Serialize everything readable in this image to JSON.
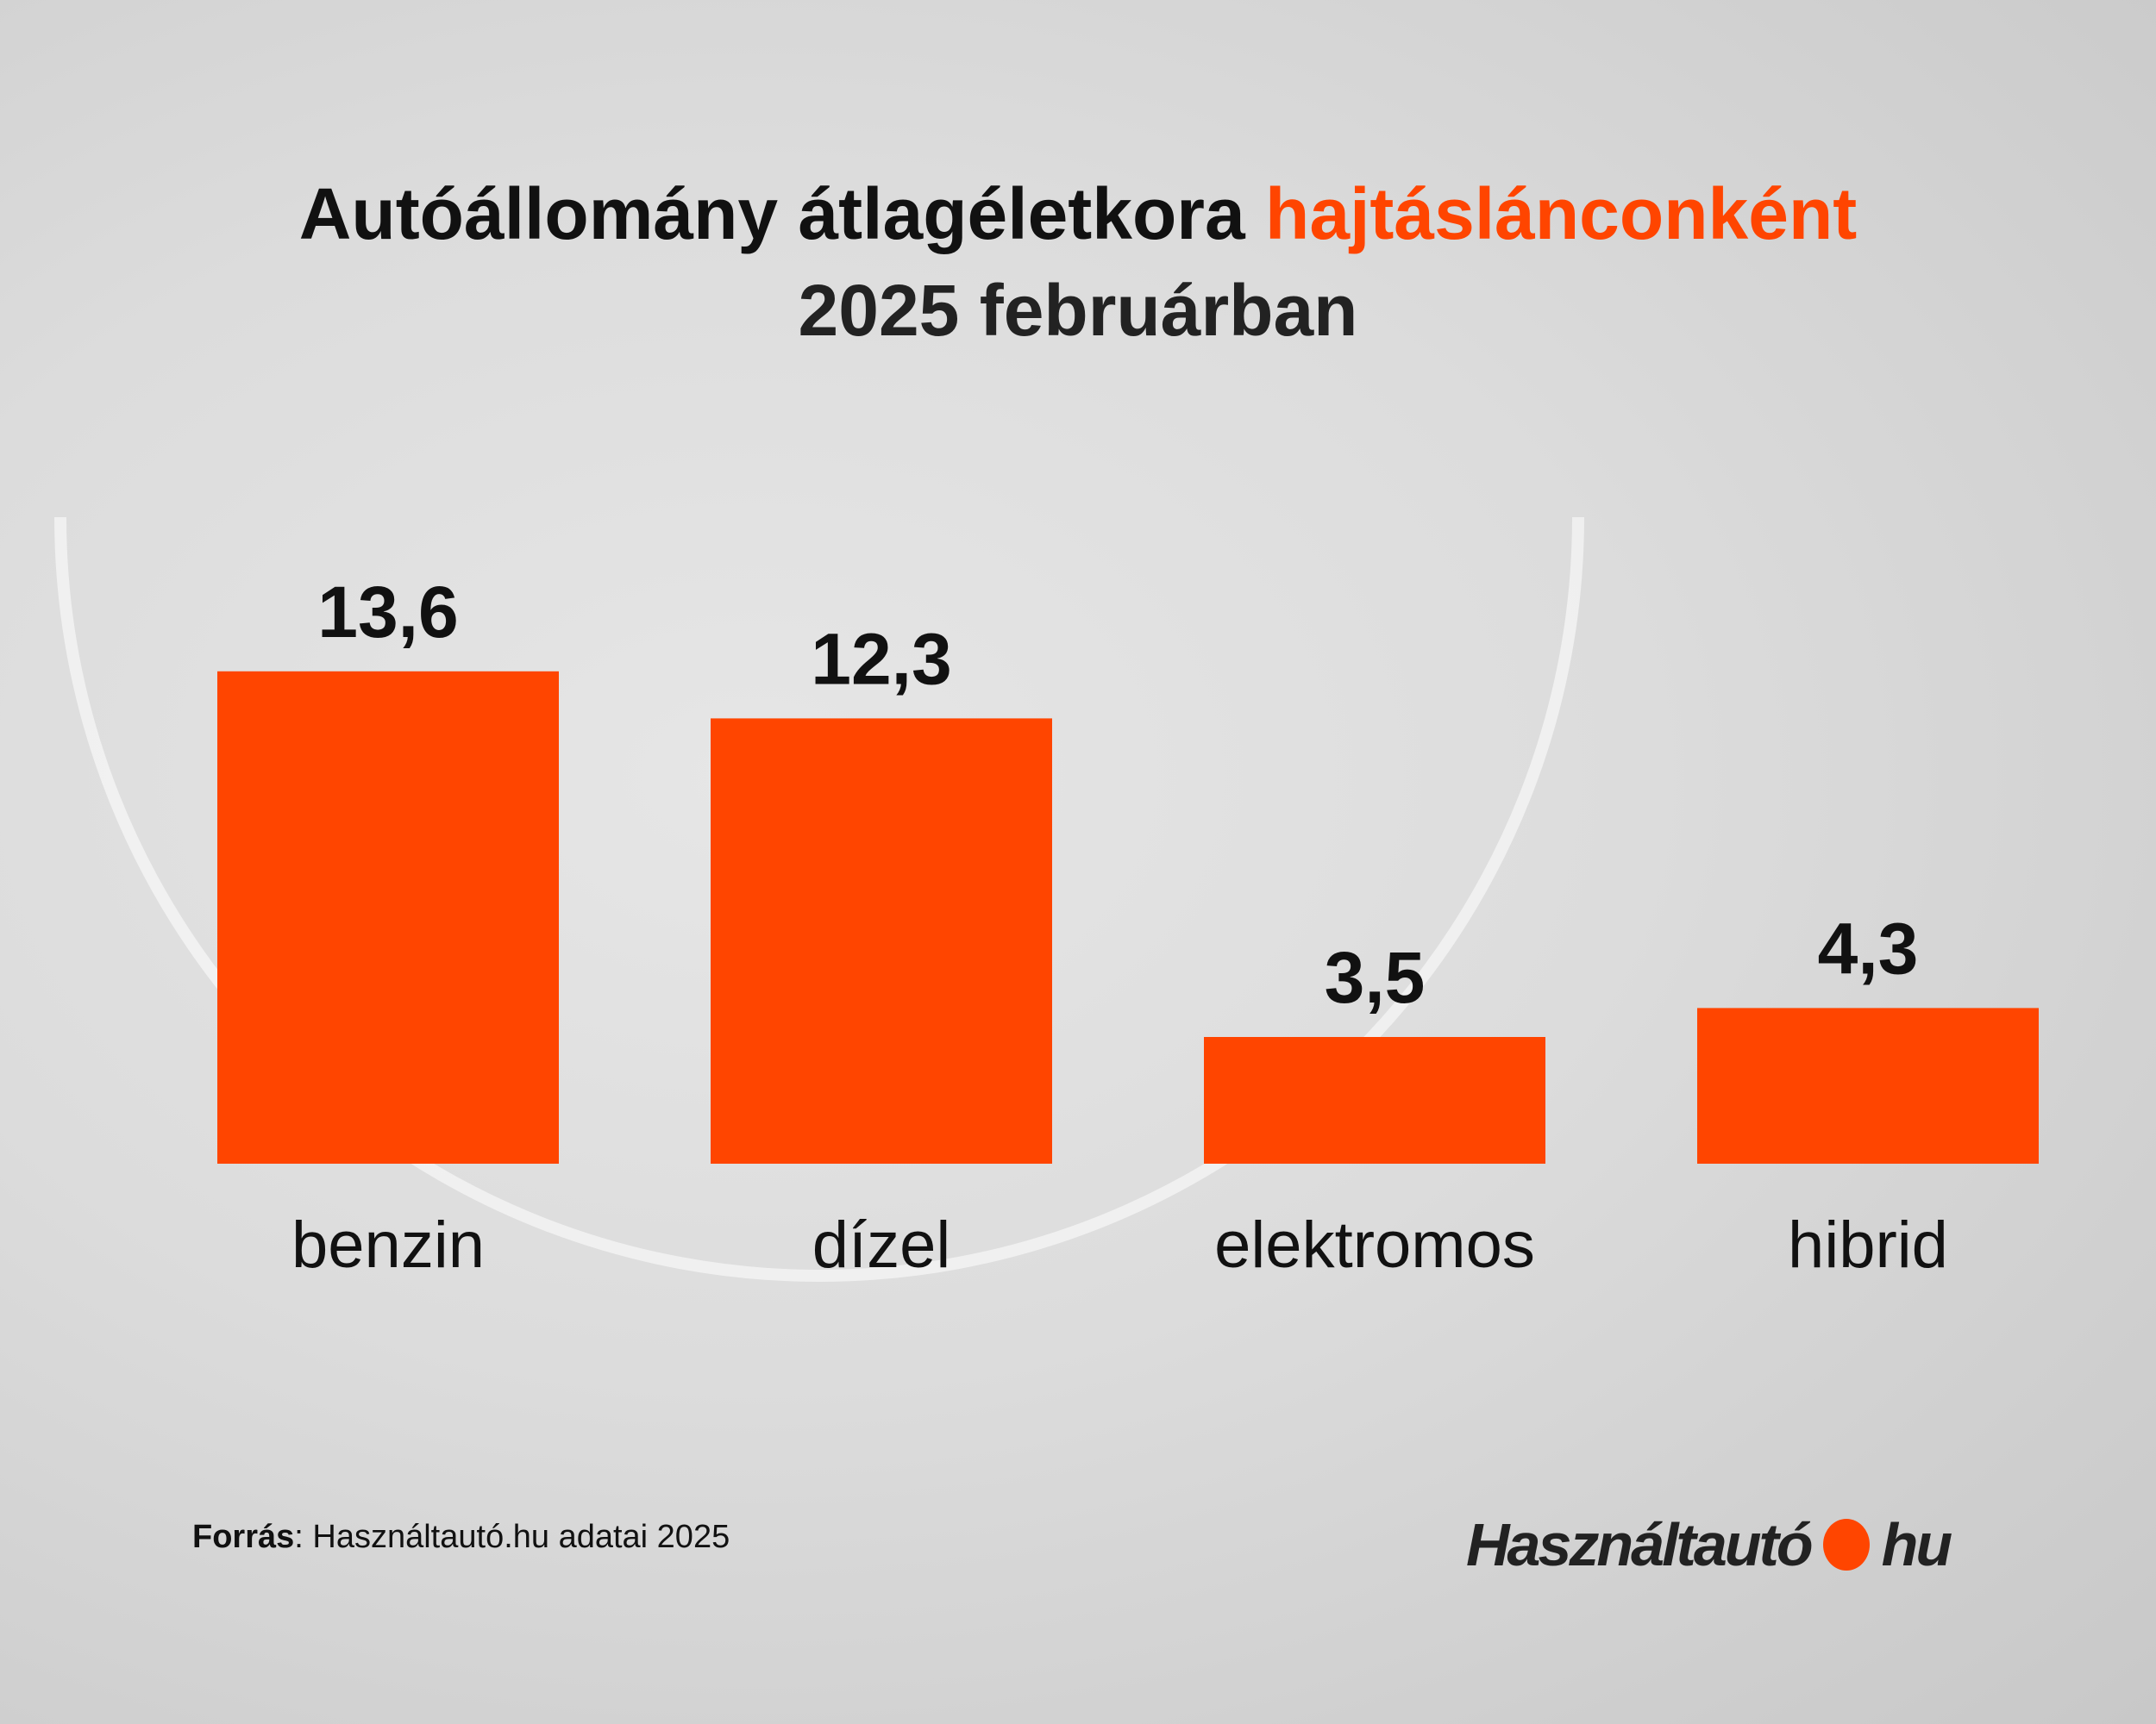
{
  "title": {
    "part1": "Autóállomány átlagéletkora ",
    "part2": "hajtásláncon­ként",
    "line2": "2025 februárban"
  },
  "chart_data": {
    "type": "bar",
    "title": "Autóállomány átlagéletkora hajtásláncon­ként 2025 februárban",
    "categories": [
      "benzin",
      "dízel",
      "elektromos",
      "hibrid"
    ],
    "values": [
      13.6,
      12.3,
      3.5,
      4.3
    ],
    "value_labels": [
      "13,6",
      "12,3",
      "3,5",
      "4,3"
    ],
    "bar_color": "#ff4500",
    "grid": false,
    "xlabel": "",
    "ylabel": ""
  },
  "source": {
    "label": "Forrás",
    "text": ": Használtautó.hu adatai 2025"
  },
  "logo": {
    "left": "Használtautó",
    "right": "hu",
    "dot_color": "#ff4500"
  }
}
